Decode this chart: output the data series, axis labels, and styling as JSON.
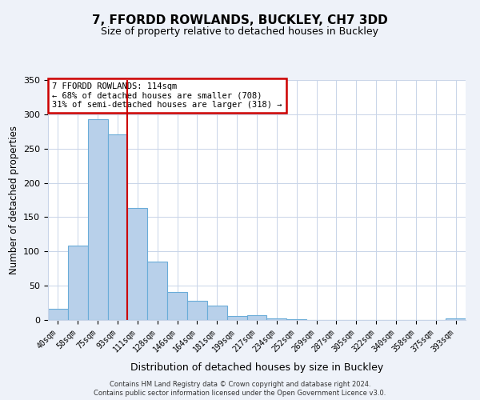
{
  "title": "7, FFORDD ROWLANDS, BUCKLEY, CH7 3DD",
  "subtitle": "Size of property relative to detached houses in Buckley",
  "xlabel": "Distribution of detached houses by size in Buckley",
  "ylabel": "Number of detached properties",
  "bin_labels": [
    "40sqm",
    "58sqm",
    "75sqm",
    "93sqm",
    "111sqm",
    "128sqm",
    "146sqm",
    "164sqm",
    "181sqm",
    "199sqm",
    "217sqm",
    "234sqm",
    "252sqm",
    "269sqm",
    "287sqm",
    "305sqm",
    "322sqm",
    "340sqm",
    "358sqm",
    "375sqm",
    "393sqm"
  ],
  "bar_values": [
    16,
    108,
    293,
    271,
    163,
    85,
    41,
    28,
    21,
    6,
    7,
    2,
    1,
    0,
    0,
    0,
    0,
    0,
    0,
    0,
    2
  ],
  "bar_color": "#b8d0ea",
  "bar_edge_color": "#6aacd8",
  "vline_x": 3.5,
  "vline_color": "#cc0000",
  "annotation_title": "7 FFORDD ROWLANDS: 114sqm",
  "annotation_line1": "← 68% of detached houses are smaller (708)",
  "annotation_line2": "31% of semi-detached houses are larger (318) →",
  "annotation_box_edge_color": "#cc0000",
  "ylim": [
    0,
    350
  ],
  "yticks": [
    0,
    50,
    100,
    150,
    200,
    250,
    300,
    350
  ],
  "footer1": "Contains HM Land Registry data © Crown copyright and database right 2024.",
  "footer2": "Contains public sector information licensed under the Open Government Licence v3.0.",
  "bg_color": "#eef2f9",
  "plot_bg_color": "#ffffff",
  "grid_color": "#c8d4e8"
}
